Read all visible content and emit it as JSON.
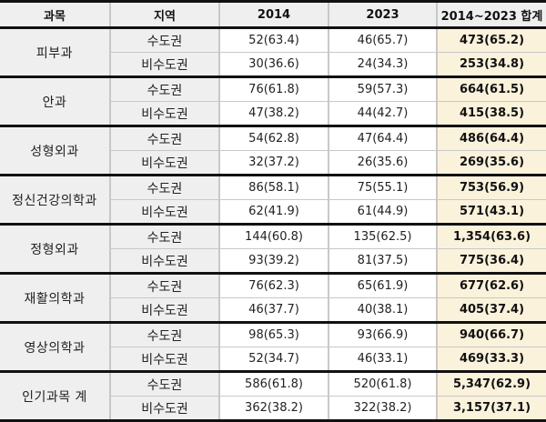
{
  "table": {
    "headers": [
      "과목",
      "지역",
      "2014",
      "2023",
      "2014~2023 합계"
    ],
    "groups": [
      {
        "subject": "피부과",
        "rows": [
          {
            "region": "수도권",
            "y2014": "52(63.4)",
            "y2023": "46(65.7)",
            "total": "473(65.2)"
          },
          {
            "region": "비수도권",
            "y2014": "30(36.6)",
            "y2023": "24(34.3)",
            "total": "253(34.8)"
          }
        ]
      },
      {
        "subject": "안과",
        "rows": [
          {
            "region": "수도권",
            "y2014": "76(61.8)",
            "y2023": "59(57.3)",
            "total": "664(61.5)"
          },
          {
            "region": "비수도권",
            "y2014": "47(38.2)",
            "y2023": "44(42.7)",
            "total": "415(38.5)"
          }
        ]
      },
      {
        "subject": "성형외과",
        "rows": [
          {
            "region": "수도권",
            "y2014": "54(62.8)",
            "y2023": "47(64.4)",
            "total": "486(64.4)"
          },
          {
            "region": "비수도권",
            "y2014": "32(37.2)",
            "y2023": "26(35.6)",
            "total": "269(35.6)"
          }
        ]
      },
      {
        "subject": "정신건강의학과",
        "rows": [
          {
            "region": "수도권",
            "y2014": "86(58.1)",
            "y2023": "75(55.1)",
            "total": "753(56.9)"
          },
          {
            "region": "비수도권",
            "y2014": "62(41.9)",
            "y2023": "61(44.9)",
            "total": "571(43.1)"
          }
        ]
      },
      {
        "subject": "정형외과",
        "rows": [
          {
            "region": "수도권",
            "y2014": "144(60.8)",
            "y2023": "135(62.5)",
            "total": "1,354(63.6)"
          },
          {
            "region": "비수도권",
            "y2014": "93(39.2)",
            "y2023": "81(37.5)",
            "total": "775(36.4)"
          }
        ]
      },
      {
        "subject": "재활의학과",
        "rows": [
          {
            "region": "수도권",
            "y2014": "76(62.3)",
            "y2023": "65(61.9)",
            "total": "677(62.6)"
          },
          {
            "region": "비수도권",
            "y2014": "46(37.7)",
            "y2023": "40(38.1)",
            "total": "405(37.4)"
          }
        ]
      },
      {
        "subject": "영상의학과",
        "rows": [
          {
            "region": "수도권",
            "y2014": "98(65.3)",
            "y2023": "93(66.9)",
            "total": "940(66.7)"
          },
          {
            "region": "비수도권",
            "y2014": "52(34.7)",
            "y2023": "46(33.1)",
            "total": "469(33.3)"
          }
        ]
      },
      {
        "subject": "인기과목 계",
        "rows": [
          {
            "region": "수도권",
            "y2014": "586(61.8)",
            "y2023": "520(61.8)",
            "total": "5,347(62.9)"
          },
          {
            "region": "비수도권",
            "y2014": "362(38.2)",
            "y2023": "322(38.2)",
            "total": "3,157(37.1)"
          }
        ]
      }
    ]
  },
  "colors": {
    "header_bg": "#efefef",
    "label_bg": "#efefef",
    "total_bg": "#fbf2dc",
    "rule": "#111111",
    "grid": "#c8c8c8"
  }
}
